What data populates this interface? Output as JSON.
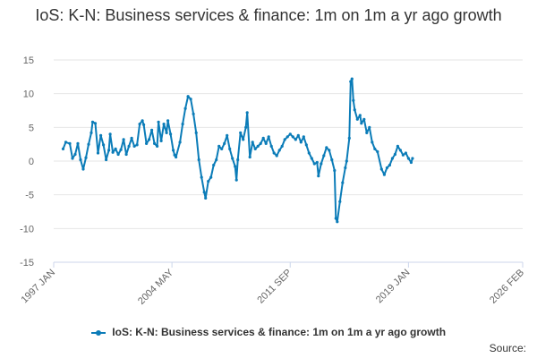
{
  "chart_data": {
    "type": "line",
    "title": "IoS: K-N: Business services & finance: 1m on 1m a yr ago growth",
    "xlabel": "",
    "ylabel": "",
    "ylim": [
      -15,
      15
    ],
    "yticks": [
      "15",
      "10",
      "5",
      "0",
      "-5",
      "-10",
      "-15"
    ],
    "xlim": [
      "1997-01",
      "2026-02"
    ],
    "xticks": [
      {
        "label": "1997 JAN",
        "date": "1997-01"
      },
      {
        "label": "2004 MAY",
        "date": "2004-05"
      },
      {
        "label": "2011 SEP",
        "date": "2011-09"
      },
      {
        "label": "2019 JAN",
        "date": "2019-01"
      },
      {
        "label": "2026 FEB",
        "date": "2026-02"
      }
    ],
    "grid": true,
    "legend_position": "bottom",
    "color": "#0b7cb8",
    "series": [
      {
        "name": "IoS: K-N: Business services & finance: 1m on 1m a yr ago growth",
        "points": [
          [
            "1997-08",
            1.8
          ],
          [
            "1997-10",
            2.8
          ],
          [
            "1998-01",
            2.6
          ],
          [
            "1998-03",
            0.4
          ],
          [
            "1998-05",
            1.0
          ],
          [
            "1998-07",
            2.6
          ],
          [
            "1998-09",
            0.2
          ],
          [
            "1998-11",
            -1.2
          ],
          [
            "1999-01",
            0.5
          ],
          [
            "1999-03",
            2.5
          ],
          [
            "1999-05",
            4.2
          ],
          [
            "1999-06",
            5.8
          ],
          [
            "1999-08",
            5.6
          ],
          [
            "1999-10",
            1.2
          ],
          [
            "1999-12",
            3.8
          ],
          [
            "2000-02",
            2.4
          ],
          [
            "2000-04",
            0.2
          ],
          [
            "2000-06",
            1.6
          ],
          [
            "2000-07",
            4.0
          ],
          [
            "2000-09",
            1.3
          ],
          [
            "2000-11",
            1.8
          ],
          [
            "2001-01",
            1.0
          ],
          [
            "2001-03",
            1.7
          ],
          [
            "2001-05",
            3.2
          ],
          [
            "2001-07",
            1.0
          ],
          [
            "2001-09",
            2.2
          ],
          [
            "2001-11",
            3.4
          ],
          [
            "2002-01",
            2.2
          ],
          [
            "2002-03",
            2.4
          ],
          [
            "2002-05",
            5.5
          ],
          [
            "2002-07",
            6.0
          ],
          [
            "2002-08",
            5.4
          ],
          [
            "2002-10",
            2.6
          ],
          [
            "2002-12",
            3.2
          ],
          [
            "2003-02",
            4.6
          ],
          [
            "2003-04",
            2.6
          ],
          [
            "2003-06",
            2.2
          ],
          [
            "2003-07",
            5.8
          ],
          [
            "2003-09",
            3.0
          ],
          [
            "2003-11",
            5.5
          ],
          [
            "2004-01",
            4.2
          ],
          [
            "2004-02",
            6.0
          ],
          [
            "2004-04",
            4.0
          ],
          [
            "2004-06",
            1.6
          ],
          [
            "2004-07",
            0.9
          ],
          [
            "2004-08",
            0.6
          ],
          [
            "2004-11",
            2.8
          ],
          [
            "2005-01",
            5.5
          ],
          [
            "2005-03",
            7.8
          ],
          [
            "2005-05",
            9.6
          ],
          [
            "2005-07",
            9.2
          ],
          [
            "2005-09",
            7.0
          ],
          [
            "2005-11",
            4.2
          ],
          [
            "2006-01",
            0.2
          ],
          [
            "2006-03",
            -2.4
          ],
          [
            "2006-05",
            -4.6
          ],
          [
            "2006-06",
            -5.5
          ],
          [
            "2006-08",
            -3.0
          ],
          [
            "2006-10",
            -2.4
          ],
          [
            "2006-12",
            -0.6
          ],
          [
            "2007-02",
            0.2
          ],
          [
            "2007-04",
            2.2
          ],
          [
            "2007-06",
            1.8
          ],
          [
            "2007-08",
            2.6
          ],
          [
            "2007-10",
            3.8
          ],
          [
            "2007-12",
            1.8
          ],
          [
            "2008-02",
            0.4
          ],
          [
            "2008-04",
            -0.8
          ],
          [
            "2008-05",
            -2.8
          ],
          [
            "2008-06",
            0.2
          ],
          [
            "2008-08",
            4.2
          ],
          [
            "2008-10",
            3.2
          ],
          [
            "2008-12",
            5.0
          ],
          [
            "2009-01",
            7.2
          ],
          [
            "2009-03",
            0.6
          ],
          [
            "2009-05",
            2.8
          ],
          [
            "2009-07",
            1.8
          ],
          [
            "2009-09",
            2.2
          ],
          [
            "2009-11",
            2.6
          ],
          [
            "2010-01",
            3.4
          ],
          [
            "2010-03",
            2.6
          ],
          [
            "2010-05",
            3.6
          ],
          [
            "2010-07",
            2.2
          ],
          [
            "2010-09",
            1.2
          ],
          [
            "2010-11",
            0.8
          ],
          [
            "2011-01",
            1.6
          ],
          [
            "2011-03",
            2.2
          ],
          [
            "2011-05",
            3.2
          ],
          [
            "2011-07",
            3.6
          ],
          [
            "2011-09",
            4.0
          ],
          [
            "2011-11",
            3.6
          ],
          [
            "2012-01",
            3.2
          ],
          [
            "2012-03",
            3.8
          ],
          [
            "2012-05",
            2.8
          ],
          [
            "2012-07",
            3.6
          ],
          [
            "2012-09",
            2.4
          ],
          [
            "2012-11",
            1.2
          ],
          [
            "2013-01",
            0.4
          ],
          [
            "2013-03",
            -0.4
          ],
          [
            "2013-05",
            -0.2
          ],
          [
            "2013-06",
            -2.2
          ],
          [
            "2013-08",
            -0.4
          ],
          [
            "2013-10",
            0.8
          ],
          [
            "2013-12",
            2.0
          ],
          [
            "2014-02",
            1.6
          ],
          [
            "2014-04",
            0.2
          ],
          [
            "2014-06",
            -1.4
          ],
          [
            "2014-07",
            -8.5
          ],
          [
            "2014-08",
            -9.0
          ],
          [
            "2014-10",
            -6.0
          ],
          [
            "2014-12",
            -3.2
          ],
          [
            "2015-02",
            -1.0
          ],
          [
            "2015-03",
            0.0
          ],
          [
            "2015-05",
            3.4
          ],
          [
            "2015-06",
            11.8
          ],
          [
            "2015-07",
            12.2
          ],
          [
            "2015-08",
            9.0
          ],
          [
            "2015-09",
            7.6
          ],
          [
            "2015-11",
            6.2
          ],
          [
            "2016-01",
            6.8
          ],
          [
            "2016-02",
            5.6
          ],
          [
            "2016-04",
            6.2
          ],
          [
            "2016-06",
            4.2
          ],
          [
            "2016-08",
            5.0
          ],
          [
            "2016-10",
            2.8
          ],
          [
            "2016-12",
            1.8
          ],
          [
            "2017-02",
            1.4
          ],
          [
            "2017-05",
            -1.2
          ],
          [
            "2017-07",
            -2.0
          ],
          [
            "2017-09",
            -1.0
          ],
          [
            "2017-11",
            -0.6
          ],
          [
            "2018-01",
            0.4
          ],
          [
            "2018-03",
            1.0
          ],
          [
            "2018-05",
            2.2
          ],
          [
            "2018-07",
            1.6
          ],
          [
            "2018-09",
            0.9
          ],
          [
            "2018-11",
            1.2
          ],
          [
            "2019-01",
            0.4
          ],
          [
            "2019-03",
            -0.2
          ],
          [
            "2019-04",
            0.4
          ]
        ]
      }
    ]
  },
  "legend": {
    "label": "IoS: K-N: Business services & finance: 1m on 1m a yr ago growth"
  },
  "source": {
    "label": "Source:"
  }
}
